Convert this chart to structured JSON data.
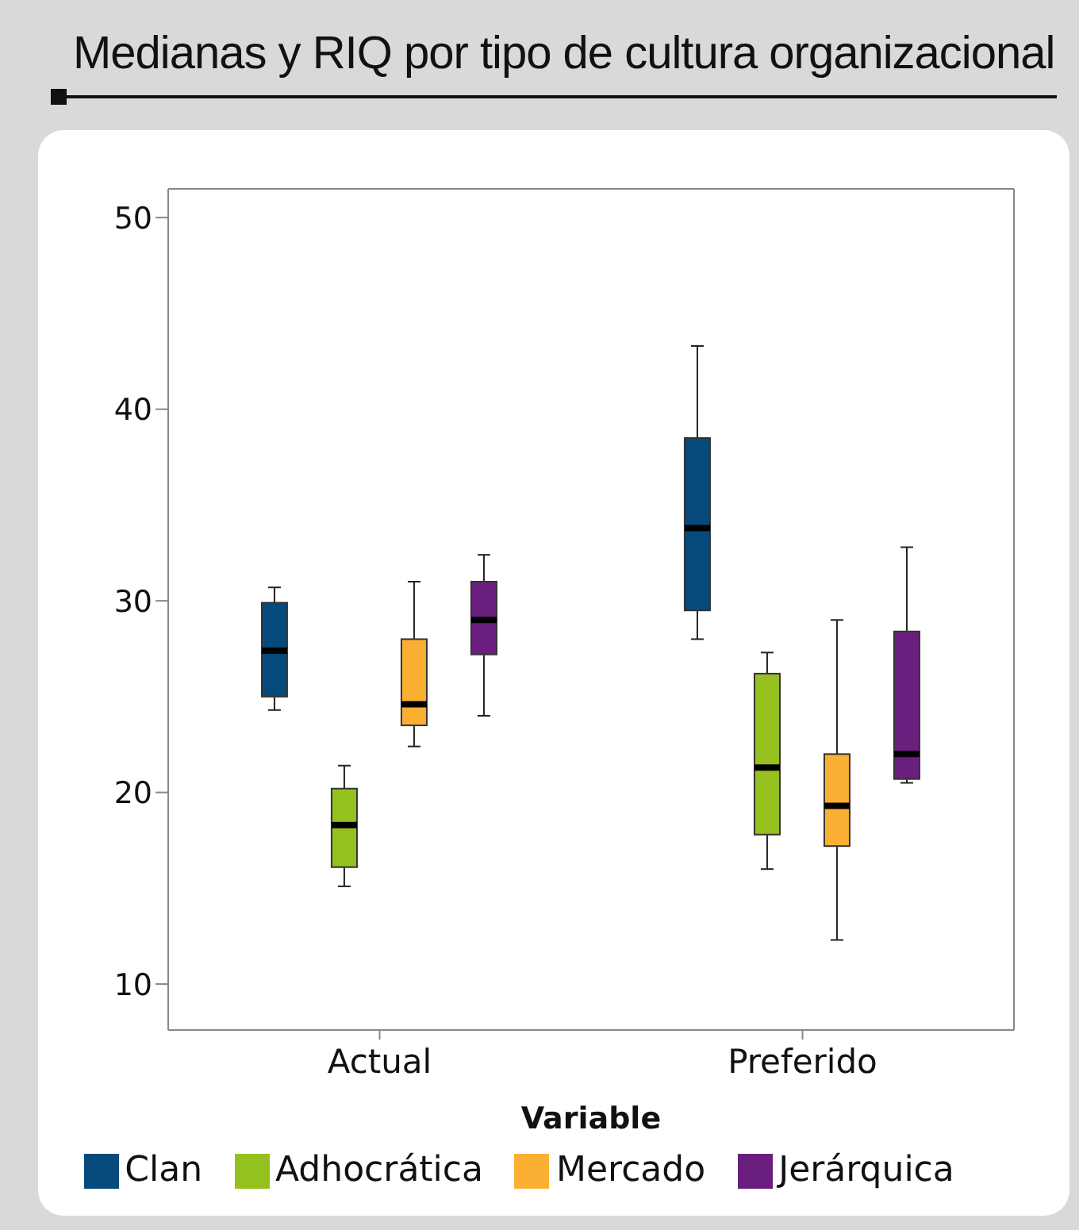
{
  "chart_data": {
    "type": "box",
    "title": "Medianas y RIQ por tipo de cultura organizacional",
    "xlabel": "Variable",
    "categories": [
      "Actual",
      "Preferido"
    ],
    "series": [
      {
        "name": "Clan",
        "color": "#064a7c",
        "boxes": [
          {
            "low": 24.3,
            "q1": 25.0,
            "median": 27.4,
            "q3": 29.9,
            "high": 30.7
          },
          {
            "low": 28.0,
            "q1": 29.5,
            "median": 33.8,
            "q3": 38.5,
            "high": 43.3
          }
        ]
      },
      {
        "name": "Adhocrática",
        "color": "#95c11f",
        "boxes": [
          {
            "low": 15.1,
            "q1": 16.1,
            "median": 18.3,
            "q3": 20.2,
            "high": 21.4
          },
          {
            "low": 16.0,
            "q1": 17.8,
            "median": 21.3,
            "q3": 26.2,
            "high": 27.3
          }
        ]
      },
      {
        "name": "Mercado",
        "color": "#fbb034",
        "boxes": [
          {
            "low": 22.4,
            "q1": 23.5,
            "median": 24.6,
            "q3": 28.0,
            "high": 31.0
          },
          {
            "low": 12.3,
            "q1": 17.2,
            "median": 19.3,
            "q3": 22.0,
            "high": 29.0
          }
        ]
      },
      {
        "name": "Jerárquica",
        "color": "#6a1f7f",
        "boxes": [
          {
            "low": 24.0,
            "q1": 27.2,
            "median": 29.0,
            "q3": 31.0,
            "high": 32.4
          },
          {
            "low": 20.5,
            "q1": 20.7,
            "median": 22.0,
            "q3": 28.4,
            "high": 32.8
          }
        ]
      }
    ],
    "ylim": [
      7.6,
      51.5
    ],
    "yticks": [
      10,
      20,
      30,
      40,
      50
    ],
    "grid": false,
    "legend": "bottom"
  }
}
